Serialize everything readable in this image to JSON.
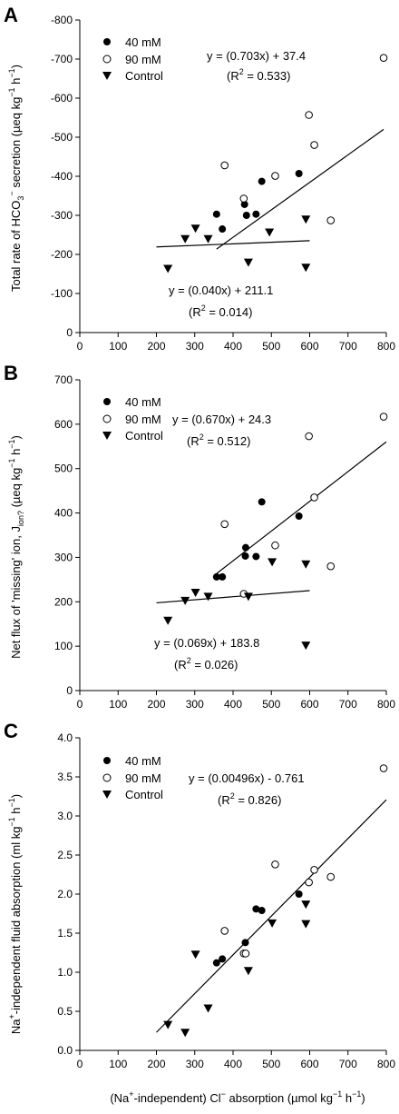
{
  "figure": {
    "x_axis_label": "(Na+-independent) Cl− absorption (µmol kg−1 h−1)",
    "legend_items": [
      "40 mM",
      "90 mM",
      "Control"
    ]
  },
  "chart_data": [
    {
      "panel_letter": "A",
      "type": "scatter",
      "ylabel": "Total rate of HCO3− secretion (µeq kg−1 h−1)",
      "xlim": [
        0,
        800
      ],
      "ylim": [
        0,
        -800
      ],
      "x_ticks": [
        "0",
        "100",
        "200",
        "300",
        "400",
        "500",
        "600",
        "700",
        "800"
      ],
      "y_ticks": [
        "0",
        "-100",
        "-200",
        "-300",
        "-400",
        "-500",
        "-600",
        "-700",
        "-800"
      ],
      "series": [
        {
          "name": "40 mM",
          "marker": "filled-circle",
          "points": [
            [
              357,
              -303
            ],
            [
              372,
              -265
            ],
            [
              430,
              -328
            ],
            [
              435,
              -300
            ],
            [
              460,
              -303
            ],
            [
              475,
              -387
            ],
            [
              572,
              -407
            ]
          ]
        },
        {
          "name": "90 mM",
          "marker": "open-circle",
          "points": [
            [
              378,
              -428
            ],
            [
              428,
              -343
            ],
            [
              510,
              -401
            ],
            [
              598,
              -557
            ],
            [
              612,
              -480
            ],
            [
              655,
              -287
            ],
            [
              793,
              -703
            ]
          ]
        },
        {
          "name": "Control",
          "marker": "filled-triangle-down",
          "points": [
            [
              230,
              -164
            ],
            [
              275,
              -240
            ],
            [
              302,
              -267
            ],
            [
              335,
              -240
            ],
            [
              440,
              -180
            ],
            [
              495,
              -257
            ],
            [
              590,
              -290
            ],
            [
              590,
              -167
            ]
          ]
        }
      ],
      "fits": [
        {
          "series": "40 mM + 90 mM",
          "slope": -0.703,
          "intercept": 37.4,
          "x_range": [
            357,
            793
          ],
          "equation": "y = (0.703x) + 37.4",
          "r2": "(R2 = 0.533)"
        },
        {
          "series": "Control",
          "slope": -0.04,
          "intercept": -211.1,
          "x_range": [
            200,
            600
          ],
          "equation": "y = (0.040x) + 211.1",
          "r2": "(R2 = 0.014)"
        }
      ]
    },
    {
      "panel_letter": "B",
      "type": "scatter",
      "ylabel": "Net flux of 'missing' ion, Jion? (µeq kg−1 h−1)",
      "xlim": [
        0,
        800
      ],
      "ylim": [
        0,
        700
      ],
      "x_ticks": [
        "0",
        "100",
        "200",
        "300",
        "400",
        "500",
        "600",
        "700",
        "800"
      ],
      "y_ticks": [
        "0",
        "100",
        "200",
        "300",
        "400",
        "500",
        "600",
        "700"
      ],
      "series": [
        {
          "name": "40 mM",
          "marker": "filled-circle",
          "points": [
            [
              357,
              256
            ],
            [
              372,
              256
            ],
            [
              432,
              303
            ],
            [
              433,
              322
            ],
            [
              460,
              302
            ],
            [
              475,
              425
            ],
            [
              572,
              393
            ]
          ]
        },
        {
          "name": "90 mM",
          "marker": "open-circle",
          "points": [
            [
              378,
              375
            ],
            [
              428,
              218
            ],
            [
              510,
              327
            ],
            [
              598,
              573
            ],
            [
              612,
              435
            ],
            [
              655,
              280
            ],
            [
              793,
              617
            ]
          ]
        },
        {
          "name": "Control",
          "marker": "filled-triangle-down",
          "points": [
            [
              230,
              158
            ],
            [
              275,
              203
            ],
            [
              302,
              221
            ],
            [
              335,
              212
            ],
            [
              440,
              212
            ],
            [
              502,
              290
            ],
            [
              590,
              285
            ],
            [
              590,
              102
            ]
          ]
        }
      ],
      "fits": [
        {
          "series": "40 mM + 90 mM",
          "slope": 0.67,
          "intercept": 24.3,
          "x_range": [
            357,
            800
          ],
          "equation": "y = (0.670x) + 24.3",
          "r2": "(R2 = 0.512)"
        },
        {
          "series": "Control",
          "slope": 0.069,
          "intercept": 183.8,
          "x_range": [
            200,
            600
          ],
          "equation": "y = (0.069x) + 183.8",
          "r2": "(R2 = 0.026)"
        }
      ]
    },
    {
      "panel_letter": "C",
      "type": "scatter",
      "ylabel": "Na+-independent fluid absorption (ml kg−1 h−1)",
      "xlim": [
        0,
        800
      ],
      "ylim": [
        0,
        4.0
      ],
      "x_ticks": [
        "0",
        "100",
        "200",
        "300",
        "400",
        "500",
        "600",
        "700",
        "800"
      ],
      "y_ticks": [
        "0.0",
        "0.5",
        "1.0",
        "1.5",
        "2.0",
        "2.5",
        "3.0",
        "3.5",
        "4.0"
      ],
      "series": [
        {
          "name": "40 mM",
          "marker": "filled-circle",
          "points": [
            [
              357,
              1.12
            ],
            [
              372,
              1.17
            ],
            [
              432,
              1.38
            ],
            [
              460,
              1.81
            ],
            [
              475,
              1.79
            ],
            [
              572,
              2.0
            ]
          ]
        },
        {
          "name": "90 mM",
          "marker": "open-circle",
          "points": [
            [
              378,
              1.53
            ],
            [
              428,
              1.24
            ],
            [
              433,
              1.24
            ],
            [
              510,
              2.38
            ],
            [
              598,
              2.15
            ],
            [
              612,
              2.31
            ],
            [
              655,
              2.22
            ],
            [
              793,
              3.61
            ]
          ]
        },
        {
          "name": "Control",
          "marker": "filled-triangle-down",
          "points": [
            [
              230,
              0.33
            ],
            [
              275,
              0.23
            ],
            [
              302,
              1.23
            ],
            [
              335,
              0.54
            ],
            [
              440,
              1.02
            ],
            [
              502,
              1.63
            ],
            [
              590,
              1.87
            ],
            [
              590,
              1.62
            ]
          ]
        }
      ],
      "fits": [
        {
          "series": "all",
          "slope": 0.00496,
          "intercept": -0.761,
          "x_range": [
            200,
            800
          ],
          "equation": "y = (0.00496x) - 0.761",
          "r2": "(R2 = 0.826)"
        }
      ]
    }
  ]
}
